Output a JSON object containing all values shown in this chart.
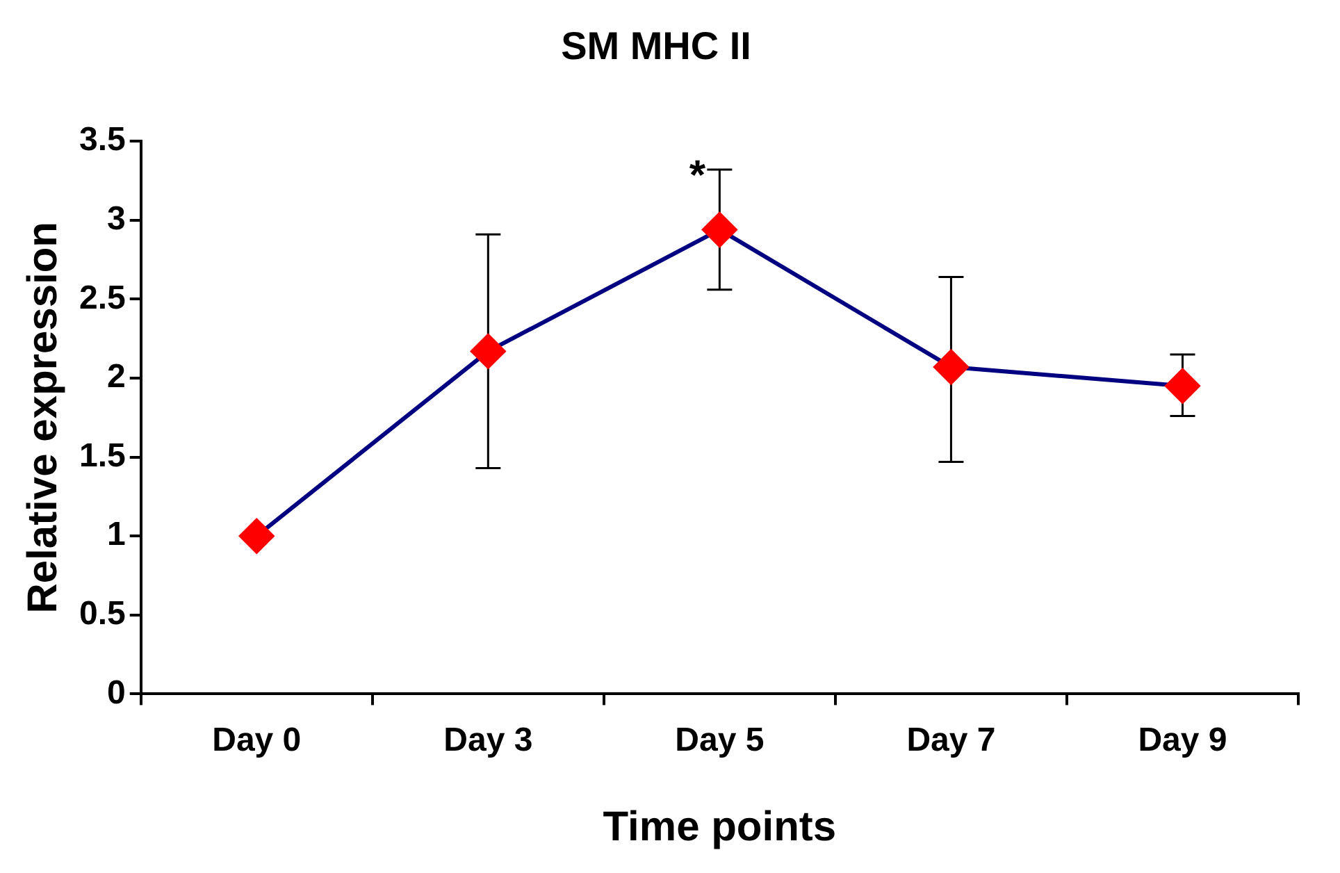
{
  "chart_data": {
    "type": "line",
    "title": "SM MHC II",
    "xlabel": "Time points",
    "ylabel": "Relative expression",
    "categories": [
      "Day 0",
      "Day 3",
      "Day 5",
      "Day 7",
      "Day 9"
    ],
    "series": [
      {
        "color": "#000080",
        "colors": [
          "#ff0000",
          "#ff0000",
          "#ff0000",
          "#ff0000",
          "#ff0000"
        ],
        "values": [
          1.0,
          2.17,
          2.94,
          2.07,
          1.95
        ],
        "errors": [
          null,
          [
            1.43,
            2.91
          ],
          [
            2.56,
            3.32
          ],
          [
            1.47,
            2.64
          ],
          [
            1.76,
            2.15
          ]
        ]
      }
    ],
    "ylim": [
      0,
      3.5
    ],
    "yticks": [
      0,
      0.5,
      1,
      1.5,
      2,
      2.5,
      3,
      3.5
    ],
    "grid": false,
    "legend": false,
    "marker": "diamond",
    "line_style": "solid",
    "annotations": [
      {
        "text": "*",
        "x": "Day 5",
        "y": 3.32
      }
    ]
  }
}
